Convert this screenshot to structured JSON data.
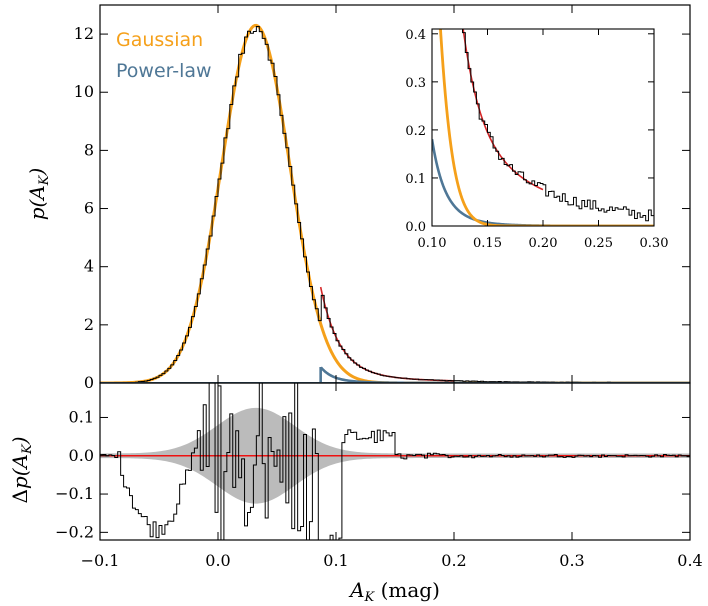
{
  "chart_data": [
    {
      "panel": "main",
      "type": "line",
      "ylabel": "p(A_K)",
      "xlim": [
        -0.1,
        0.4
      ],
      "ylim": [
        0,
        13
      ],
      "x_ticks": [
        "−0.1",
        "0.0",
        "0.1",
        "0.2",
        "0.3",
        "0.4"
      ],
      "y_ticks": [
        "0",
        "2",
        "4",
        "6",
        "8",
        "10",
        "12"
      ],
      "legend": [
        {
          "label": "Gaussian",
          "color": "#f5a01a"
        },
        {
          "label": "Power-law",
          "color": "#4f7796"
        }
      ],
      "series": [
        {
          "name": "Gaussian",
          "model": "gaussian",
          "amplitude": 12.3,
          "mean": 0.032,
          "sigma": 0.029,
          "color": "#f5a01a"
        },
        {
          "name": "Power-law",
          "model": "power-law",
          "x_start": 0.087,
          "amplitude": 0.55,
          "exponent": 8.0,
          "color": "#4f7796"
        },
        {
          "name": "Histogram",
          "model": "histogram",
          "color": "#000000"
        },
        {
          "name": "Fit tail",
          "model": "tail",
          "x_start": 0.087,
          "x_end": 0.2,
          "color": "#d62728"
        }
      ]
    },
    {
      "panel": "inset",
      "type": "line",
      "xlim": [
        0.1,
        0.3
      ],
      "ylim": [
        0,
        0.41
      ],
      "x_ticks": [
        "0.10",
        "0.15",
        "0.20",
        "0.25",
        "0.30"
      ],
      "y_ticks": [
        "0.0",
        "0.1",
        "0.2",
        "0.3",
        "0.4"
      ]
    },
    {
      "panel": "residual",
      "type": "line",
      "ylabel": "Δp(A_K)",
      "xlabel": "A_K (mag)",
      "xlim": [
        -0.1,
        0.4
      ],
      "ylim": [
        -0.22,
        0.19
      ],
      "x_ticks": [
        "−0.1",
        "0.0",
        "0.1",
        "0.2",
        "0.3",
        "0.4"
      ],
      "y_ticks": [
        "−0.2",
        "−0.1",
        "0.0",
        "0.1"
      ],
      "zero_line_color": "#ee1111",
      "band_color": "#bbbbbb",
      "band": {
        "peak_halfwidth": 0.125,
        "center": 0.032,
        "sigma": 0.033,
        "floor": 0.006
      }
    }
  ]
}
